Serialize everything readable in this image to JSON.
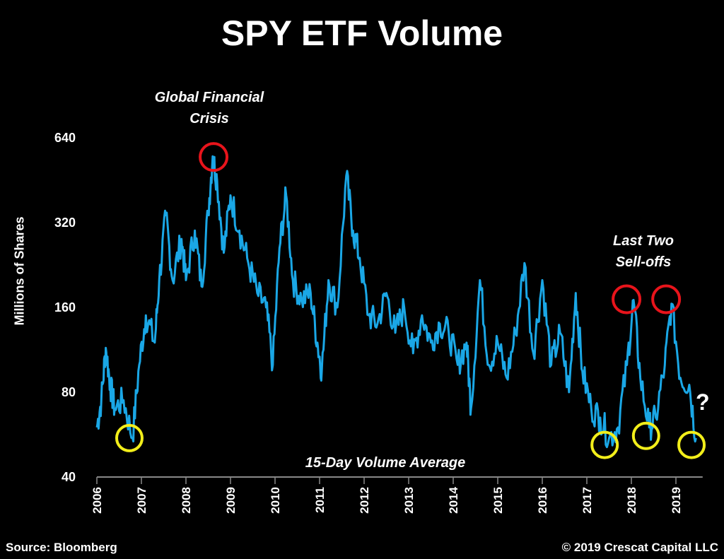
{
  "chart_data": {
    "type": "line",
    "title": "SPY ETF Volume",
    "xlabel": "",
    "ylabel": "Millions of Shares",
    "yscale": "log2",
    "ylim": [
      40,
      640
    ],
    "xlim": [
      2006,
      2019.6
    ],
    "yticks": [
      "40",
      "80",
      "160",
      "320",
      "640"
    ],
    "ytick_values": [
      40,
      80,
      160,
      320,
      640
    ],
    "xticks": [
      "2006",
      "2007",
      "2008",
      "2009",
      "2010",
      "2011",
      "2012",
      "2013",
      "2014",
      "2015",
      "2016",
      "2017",
      "2018",
      "2019"
    ],
    "series": [
      {
        "name": "15-Day Volume Average",
        "color": "#1aa7e6",
        "x": [
          2006.0,
          2006.1,
          2006.2,
          2006.3,
          2006.4,
          2006.6,
          2006.8,
          2006.95,
          2007.1,
          2007.3,
          2007.4,
          2007.55,
          2007.7,
          2007.9,
          2008.0,
          2008.2,
          2008.35,
          2008.5,
          2008.6,
          2008.7,
          2008.85,
          2009.0,
          2009.2,
          2009.4,
          2009.6,
          2009.8,
          2009.95,
          2010.1,
          2010.25,
          2010.4,
          2010.6,
          2010.8,
          2010.95,
          2011.05,
          2011.2,
          2011.4,
          2011.6,
          2011.75,
          2011.9,
          2012.1,
          2012.3,
          2012.5,
          2012.7,
          2012.9,
          2013.1,
          2013.3,
          2013.5,
          2013.7,
          2013.9,
          2014.1,
          2014.3,
          2014.4,
          2014.6,
          2014.8,
          2015.0,
          2015.2,
          2015.4,
          2015.6,
          2015.8,
          2016.0,
          2016.2,
          2016.4,
          2016.6,
          2016.75,
          2016.9,
          2017.1,
          2017.3,
          2017.5,
          2017.7,
          2017.9,
          2018.05,
          2018.2,
          2018.4,
          2018.55,
          2018.75,
          2018.9,
          2019.1,
          2019.3,
          2019.45
        ],
        "values": [
          60,
          75,
          115,
          85,
          70,
          75,
          55,
          100,
          150,
          120,
          200,
          340,
          200,
          280,
          200,
          300,
          190,
          350,
          550,
          450,
          250,
          400,
          300,
          230,
          180,
          160,
          100,
          260,
          400,
          200,
          170,
          180,
          120,
          95,
          200,
          160,
          470,
          300,
          240,
          150,
          140,
          180,
          130,
          160,
          110,
          150,
          120,
          140,
          130,
          100,
          120,
          70,
          200,
          100,
          120,
          90,
          130,
          230,
          110,
          200,
          100,
          130,
          80,
          180,
          95,
          70,
          65,
          55,
          60,
          100,
          170,
          90,
          60,
          65,
          100,
          165,
          90,
          85,
          55
        ]
      }
    ],
    "annotations": [
      {
        "text": "Global Financial Crisis",
        "type": "red-circle",
        "x": 2008.62,
        "y": 547
      },
      {
        "text": "Last Two Sell-offs",
        "type": "red-circle",
        "x": 2017.89,
        "y": 171
      },
      {
        "text": "",
        "type": "red-circle",
        "x": 2018.78,
        "y": 171
      },
      {
        "text": "",
        "type": "yellow-circle",
        "x": 2006.73,
        "y": 55
      },
      {
        "text": "",
        "type": "yellow-circle",
        "x": 2017.4,
        "y": 52
      },
      {
        "text": "",
        "type": "yellow-circle",
        "x": 2018.33,
        "y": 56
      },
      {
        "text": "",
        "type": "yellow-circle",
        "x": 2019.35,
        "y": 52
      }
    ],
    "series_label": "15-Day Volume Average",
    "question_mark": "?",
    "grid": false,
    "legend": "none"
  },
  "labels": {
    "gfc_line1": "Global Financial",
    "gfc_line2": "Crisis",
    "sell_line1": "Last Two",
    "sell_line2": "Sell-offs"
  },
  "footer": {
    "source": "Source: Bloomberg",
    "copyright": "© 2019 Crescat Capital LLC"
  }
}
